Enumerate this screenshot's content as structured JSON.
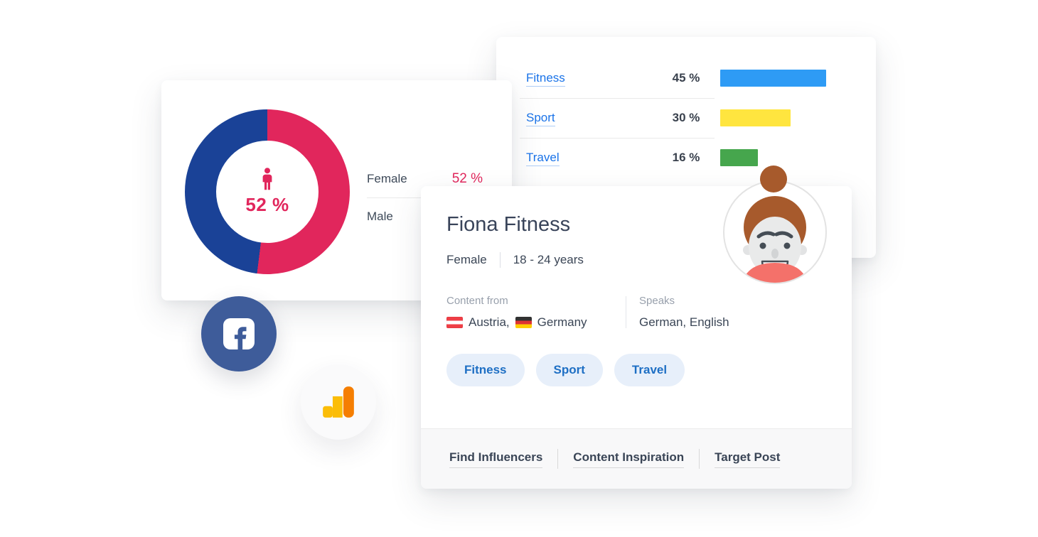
{
  "gender_card": {
    "center_value": "52 %",
    "legend": [
      {
        "label": "Female",
        "value": "52 %"
      },
      {
        "label": "Male",
        "value": ""
      }
    ]
  },
  "interests_card": {
    "rows": [
      {
        "label": "Fitness",
        "value": "45 %"
      },
      {
        "label": "Sport",
        "value": "30 %"
      },
      {
        "label": "Travel",
        "value": "16 %"
      }
    ]
  },
  "profile_card": {
    "name": "Fiona Fitness",
    "gender": "Female",
    "age_range": "18 - 24 years",
    "content_from_label": "Content from",
    "countries": [
      {
        "name": "Austria,",
        "flag": "austria"
      },
      {
        "name": "Germany",
        "flag": "germany"
      }
    ],
    "speaks_label": "Speaks",
    "languages": "German, English",
    "tags": [
      "Fitness",
      "Sport",
      "Travel"
    ],
    "footer_links": [
      "Find Influencers",
      "Content Inspiration",
      "Target Post"
    ]
  },
  "icons": {
    "facebook_blue": "#3e5c9a",
    "analytics_yellow": "#fbbd08",
    "analytics_orange": "#f57e02",
    "person_pink": "#e1265c"
  },
  "chart_data": [
    {
      "type": "pie",
      "title": "Gender split donut",
      "labels": [
        "Female",
        "Male"
      ],
      "values": [
        52,
        48
      ],
      "colors": [
        "#e1265c",
        "#1a4297"
      ],
      "center_label": "52 %",
      "legend_position": "right"
    },
    {
      "type": "bar",
      "orientation": "horizontal",
      "categories": [
        "Fitness",
        "Sport",
        "Travel"
      ],
      "values": [
        45,
        30,
        16
      ],
      "unit": "%",
      "colors": [
        "#2e9bf5",
        "#ffe53f",
        "#46a64d"
      ],
      "xlim": [
        0,
        60
      ],
      "grid": false
    }
  ]
}
